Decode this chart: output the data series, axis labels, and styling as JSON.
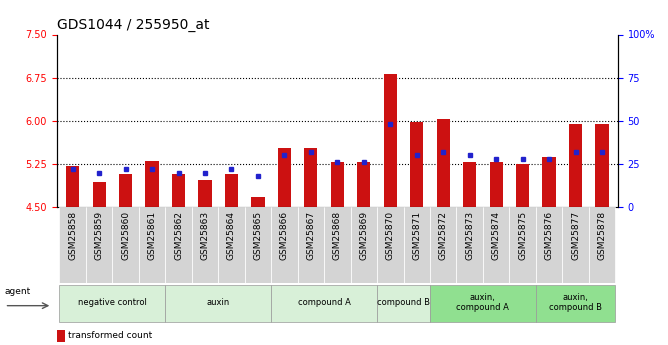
{
  "title": "GDS1044 / 255950_at",
  "samples": [
    "GSM25858",
    "GSM25859",
    "GSM25860",
    "GSM25861",
    "GSM25862",
    "GSM25863",
    "GSM25864",
    "GSM25865",
    "GSM25866",
    "GSM25867",
    "GSM25868",
    "GSM25869",
    "GSM25870",
    "GSM25871",
    "GSM25872",
    "GSM25873",
    "GSM25874",
    "GSM25875",
    "GSM25876",
    "GSM25877",
    "GSM25878"
  ],
  "transformed_count": [
    5.22,
    4.93,
    5.08,
    5.3,
    5.08,
    4.97,
    5.08,
    4.67,
    5.52,
    5.53,
    5.28,
    5.28,
    6.82,
    5.98,
    6.03,
    5.28,
    5.28,
    5.25,
    5.37,
    5.95,
    5.95
  ],
  "percentile_rank": [
    22,
    20,
    22,
    22,
    20,
    20,
    22,
    18,
    30,
    32,
    26,
    26,
    48,
    30,
    32,
    30,
    28,
    28,
    28,
    32,
    32
  ],
  "ymin": 4.5,
  "ymax": 7.5,
  "yticks": [
    4.5,
    5.25,
    6.0,
    6.75,
    7.5
  ],
  "right_yticks": [
    0,
    25,
    50,
    75,
    100
  ],
  "right_ylabels": [
    "0",
    "25",
    "50",
    "75",
    "100%"
  ],
  "hlines": [
    5.25,
    6.0,
    6.75
  ],
  "groups": [
    {
      "label": "negative control",
      "start": 0,
      "end": 3,
      "color": "#d8f0d8"
    },
    {
      "label": "auxin",
      "start": 4,
      "end": 7,
      "color": "#d8f0d8"
    },
    {
      "label": "compound A",
      "start": 8,
      "end": 11,
      "color": "#d8f0d8"
    },
    {
      "label": "compound B",
      "start": 12,
      "end": 13,
      "color": "#d8f0d8"
    },
    {
      "label": "auxin,\ncompound A",
      "start": 14,
      "end": 17,
      "color": "#90e090"
    },
    {
      "label": "auxin,\ncompound B",
      "start": 18,
      "end": 20,
      "color": "#90e090"
    }
  ],
  "bar_color": "#cc1111",
  "marker_color": "#2222cc",
  "title_fontsize": 10,
  "tick_fontsize": 7,
  "bar_width": 0.5,
  "baseline": 4.5,
  "light_green": "#d8f0d8",
  "dark_green": "#90e090",
  "gray_bg": "#d4d4d4"
}
